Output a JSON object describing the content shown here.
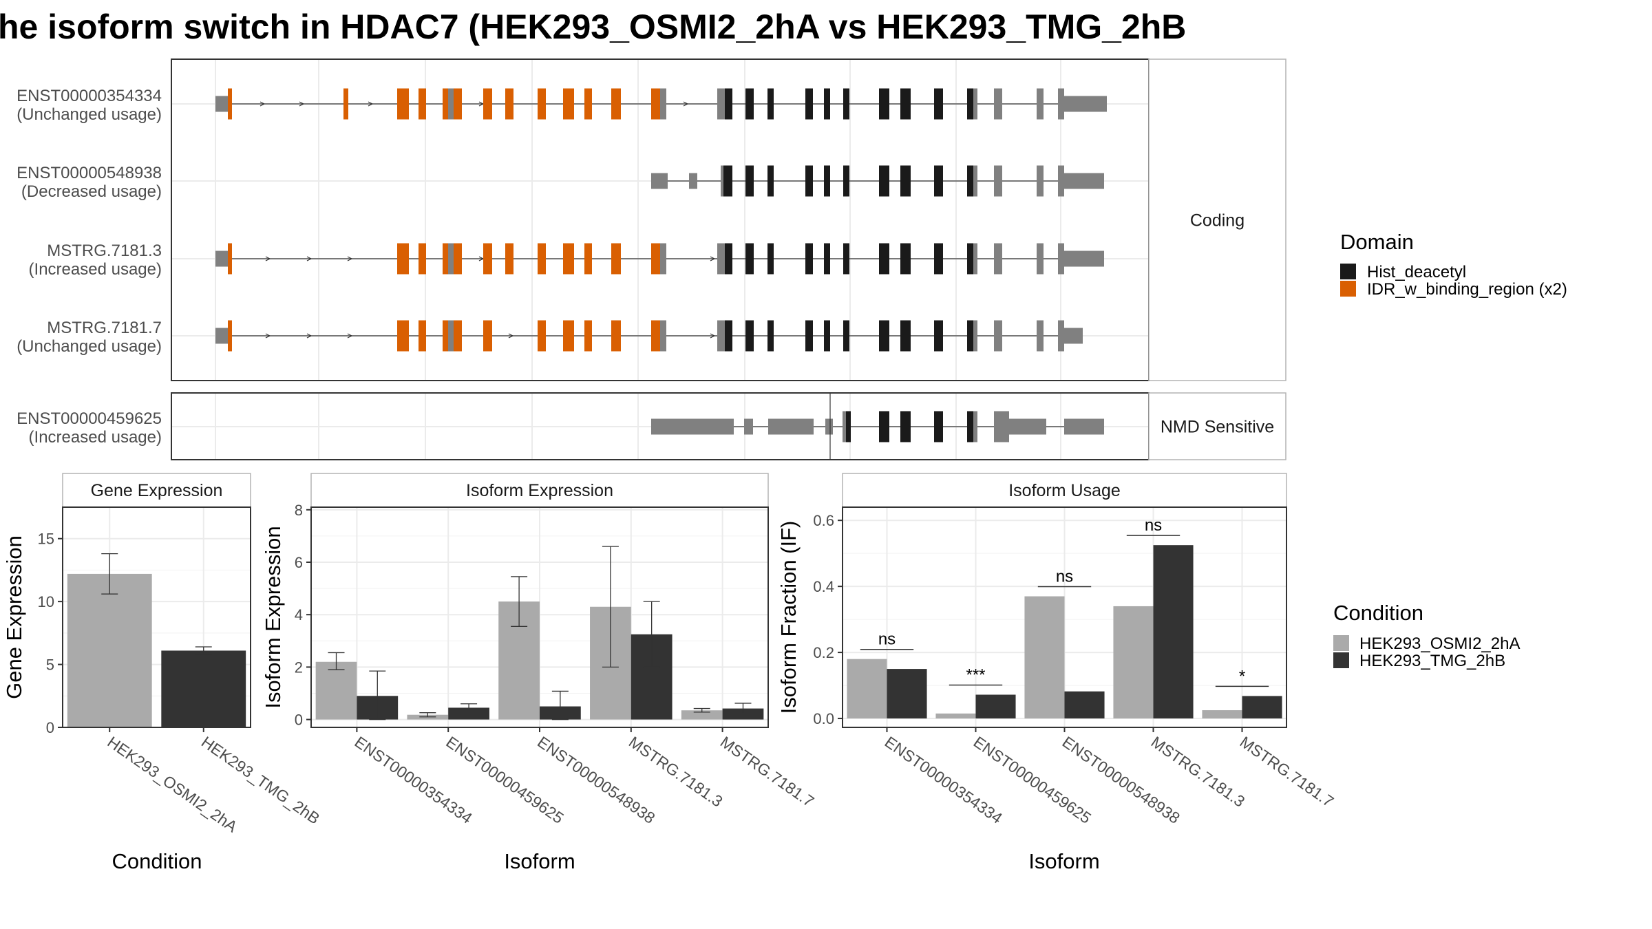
{
  "title": "he isoform switch in HDAC7 (HEK293_OSMI2_2hA vs HEK293_TMG_2hB",
  "colors": {
    "hist_deacetyl": "#1a1a1a",
    "idr": "#d95f02",
    "exon": "#808080",
    "osmi": "#aaaaaa",
    "tmg": "#333333",
    "panel_border": "#333333",
    "strip_border": "#b3b3b3",
    "grid": "#ebebeb"
  },
  "structure": {
    "panels": [
      {
        "strip": "Coding",
        "tracks": [
          {
            "name": "ENST00000354334",
            "note": "(Unchanged usage)"
          },
          {
            "name": "ENST00000548938",
            "note": "(Decreased usage)"
          },
          {
            "name": "MSTRG.7181.3",
            "note": "(Increased usage)"
          },
          {
            "name": "MSTRG.7181.7",
            "note": "(Unchanged usage)"
          }
        ]
      },
      {
        "strip": "NMD Sensitive",
        "tracks": [
          {
            "name": "ENST00000459625",
            "note": "(Increased usage)"
          }
        ]
      }
    ]
  },
  "legend_domain": {
    "title": "Domain",
    "items": [
      {
        "label": "Hist_deacetyl",
        "color": "#1a1a1a"
      },
      {
        "label": "IDR_w_binding_region (x2)",
        "color": "#d95f02"
      }
    ]
  },
  "legend_condition": {
    "title": "Condition",
    "items": [
      {
        "label": "HEK293_OSMI2_2hA",
        "color": "#aaaaaa"
      },
      {
        "label": "HEK293_TMG_2hB",
        "color": "#333333"
      }
    ]
  },
  "chart_data": [
    {
      "type": "bar",
      "title": "Gene Expression",
      "xlabel": "Condition",
      "ylabel": "Gene Expression",
      "categories": [
        "HEK293_OSMI2_2hA",
        "HEK293_TMG_2hB"
      ],
      "values": [
        12.2,
        6.1
      ],
      "error_low": [
        10.6,
        5.8
      ],
      "error_high": [
        13.8,
        6.4
      ],
      "colors": [
        "#aaaaaa",
        "#333333"
      ],
      "ylim": [
        0,
        17.5
      ],
      "yticks": [
        0,
        5,
        10,
        15
      ]
    },
    {
      "type": "bar",
      "title": "Isoform Expression",
      "xlabel": "Isoform",
      "ylabel": "Isoform Expression",
      "categories": [
        "ENST00000354334",
        "ENST00000459625",
        "ENST00000548938",
        "MSTRG.7181.3",
        "MSTRG.7181.7"
      ],
      "series": [
        {
          "values": [
            2.2,
            0.18,
            4.5,
            4.3,
            0.35
          ],
          "error_low": [
            1.9,
            0.1,
            3.55,
            2.0,
            0.28
          ],
          "error_high": [
            2.55,
            0.26,
            5.45,
            6.6,
            0.42
          ]
        },
        {
          "values": [
            0.9,
            0.45,
            0.5,
            3.25,
            0.42
          ],
          "error_low": [
            0.0,
            0.3,
            0.0,
            2.0,
            0.22
          ],
          "error_high": [
            1.85,
            0.6,
            1.08,
            4.5,
            0.62
          ]
        }
      ],
      "colors": [
        "#aaaaaa",
        "#333333"
      ],
      "ylim": [
        -0.3,
        8.1
      ],
      "yticks": [
        0,
        2,
        4,
        6,
        8
      ]
    },
    {
      "type": "bar",
      "title": "Isoform Usage",
      "xlabel": "Isoform",
      "ylabel": "Isoform Fraction (IF)",
      "categories": [
        "ENST00000354334",
        "ENST00000459625",
        "ENST00000548938",
        "MSTRG.7181.3",
        "MSTRG.7181.7"
      ],
      "series": [
        {
          "values": [
            0.18,
            0.015,
            0.37,
            0.34,
            0.025
          ]
        },
        {
          "values": [
            0.15,
            0.072,
            0.082,
            0.525,
            0.068
          ]
        }
      ],
      "colors": [
        "#aaaaaa",
        "#333333"
      ],
      "significance": [
        "ns",
        "***",
        "ns",
        "ns",
        "*"
      ],
      "ylim": [
        -0.027,
        0.64
      ],
      "yticks": [
        0.0,
        0.2,
        0.4,
        0.6
      ]
    }
  ]
}
